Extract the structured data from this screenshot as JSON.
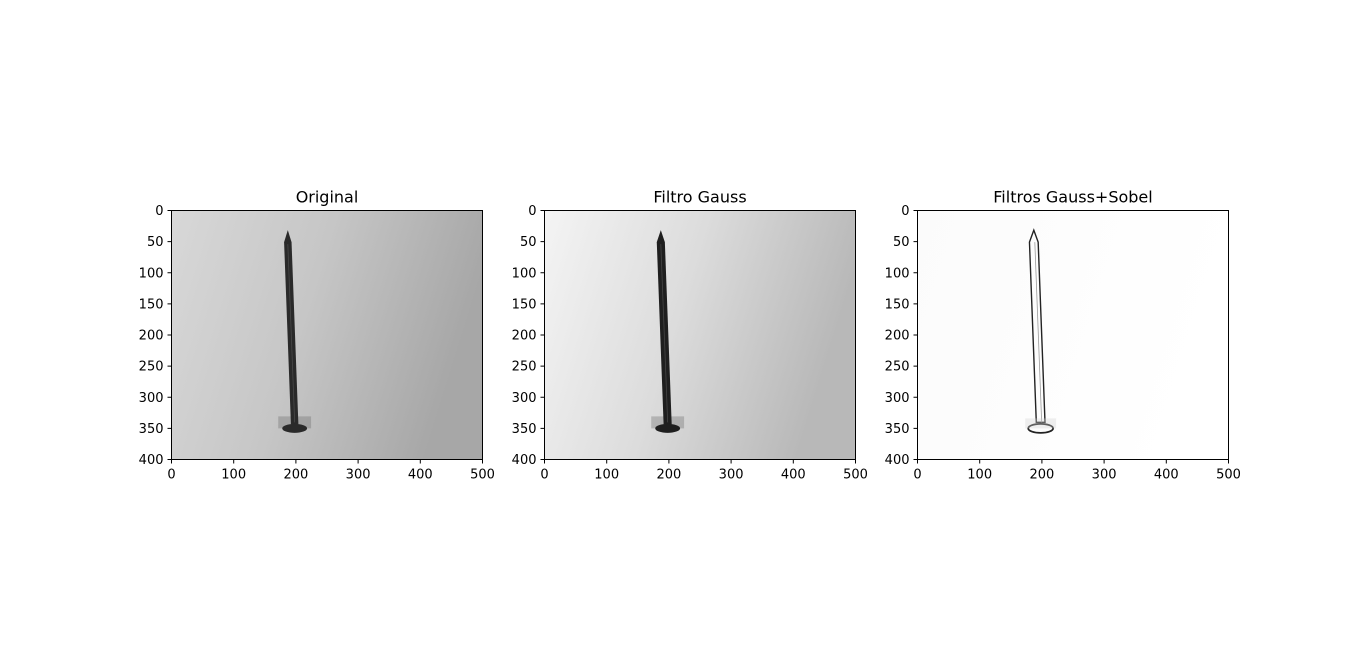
{
  "figure": {
    "background": "#ffffff"
  },
  "chart_data": [
    {
      "type": "heatmap",
      "title": "Original",
      "colormap": "gray",
      "background_gradient": [
        "#d8d8d8",
        "#c6c6c6",
        "#a7a7a7"
      ],
      "xlim": [
        0,
        500
      ],
      "ylim": [
        400,
        0
      ],
      "xticks": [
        0,
        100,
        200,
        300,
        400,
        500
      ],
      "yticks": [
        0,
        50,
        100,
        150,
        200,
        250,
        300,
        350,
        400
      ],
      "object": {
        "name": "nail",
        "tip": [
          187,
          38
        ],
        "head": [
          198,
          350
        ],
        "head_width": 40,
        "shaft_width": 12,
        "color": "#2a2a2a"
      }
    },
    {
      "type": "heatmap",
      "title": "Filtro Gauss",
      "colormap": "gray",
      "background_gradient": [
        "#f4f4f4",
        "#dcdcdc",
        "#b8b8b8"
      ],
      "xlim": [
        0,
        500
      ],
      "ylim": [
        400,
        0
      ],
      "xticks": [
        0,
        100,
        200,
        300,
        400,
        500
      ],
      "yticks": [
        0,
        50,
        100,
        150,
        200,
        250,
        300,
        350,
        400
      ],
      "object": {
        "name": "nail",
        "tip": [
          187,
          38
        ],
        "head": [
          198,
          350
        ],
        "head_width": 40,
        "shaft_width": 13,
        "color": "#1f1f1f"
      }
    },
    {
      "type": "heatmap",
      "title": "Filtros Gauss+Sobel",
      "colormap": "gray_r",
      "background_gradient": [
        "#fbfbfb",
        "#fdfdfd",
        "#ffffff"
      ],
      "xlim": [
        0,
        500
      ],
      "ylim": [
        400,
        0
      ],
      "xticks": [
        0,
        100,
        200,
        300,
        400,
        500
      ],
      "yticks": [
        0,
        50,
        100,
        150,
        200,
        250,
        300,
        350,
        400
      ],
      "object": {
        "name": "nail-edges",
        "tip": [
          187,
          38
        ],
        "head": [
          198,
          350
        ],
        "head_width": 40,
        "shaft_width": 14,
        "color": "#222222"
      }
    }
  ]
}
